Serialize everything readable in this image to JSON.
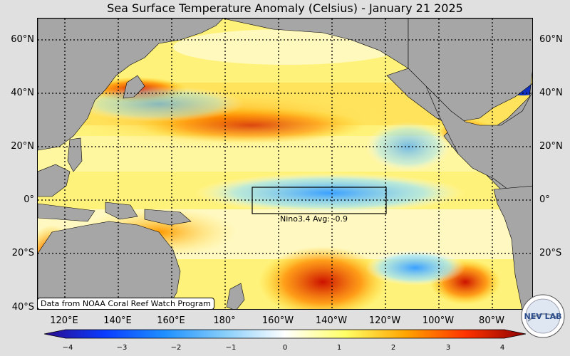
{
  "title": "Sea Surface Temperature Anomaly (Celsius) - January 21 2025",
  "lat_labels": [
    "60°N",
    "40°N",
    "20°N",
    "0°",
    "20°S",
    "40°S"
  ],
  "lon_labels": [
    "120°E",
    "140°E",
    "160°E",
    "180°",
    "160°W",
    "140°W",
    "120°W",
    "100°W",
    "80°W"
  ],
  "nino_box": {
    "label": "Nino3.4 Avg: -0.9",
    "lat_range": [
      -5,
      5
    ],
    "lon_range": [
      "170°W",
      "120°W"
    ]
  },
  "credit": "Data from NOAA Coral Reef Watch Program",
  "colorbar": {
    "ticks": [
      "−4",
      "−3",
      "−2",
      "−1",
      "0",
      "1",
      "2",
      "3",
      "4"
    ],
    "colors": [
      "#2a0a8c",
      "#0a3cff",
      "#1e90ff",
      "#87cefa",
      "#ffffff",
      "#ffff66",
      "#ffa500",
      "#ff3300",
      "#8b0000"
    ]
  },
  "logo": {
    "text": "NEV LAB"
  },
  "colors": {
    "land": "#a6a6a6",
    "background": "#e0e0e0"
  }
}
